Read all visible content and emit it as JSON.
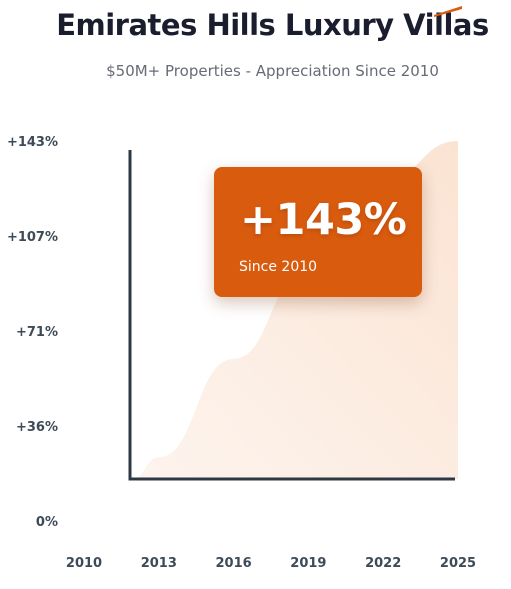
{
  "chart_data": {
    "type": "area",
    "title": "Emirates Hills Luxury Villas",
    "subtitle": "$50M+ Properties - Appreciation Since 2010",
    "x": [
      2010,
      2013,
      2016,
      2019,
      2022,
      2025
    ],
    "xticks": [
      "2010",
      "2013",
      "2016",
      "2019",
      "2022",
      "2025"
    ],
    "yticks": [
      "0%",
      "+36%",
      "+71%",
      "+107%",
      "+143%"
    ],
    "series": [
      {
        "values": [
          0,
          24,
          61,
          95,
          128,
          143
        ]
      }
    ],
    "ylim": [
      0,
      143
    ],
    "xlim": [
      2010,
      2025
    ],
    "grid": false,
    "accent_color": "#d95b0e",
    "fill_color": "#fbe4d5",
    "axis_color": "#2e3944",
    "annotation": {
      "value": "+143%",
      "label": "Since 2010"
    }
  }
}
